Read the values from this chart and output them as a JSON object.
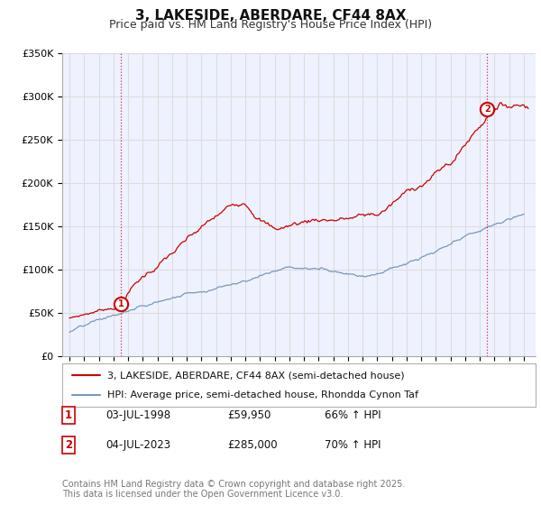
{
  "title_line1": "3, LAKESIDE, ABERDARE, CF44 8AX",
  "title_line2": "Price paid vs. HM Land Registry's House Price Index (HPI)",
  "ylim": [
    0,
    350000
  ],
  "yticks": [
    0,
    50000,
    100000,
    150000,
    200000,
    250000,
    300000,
    350000
  ],
  "ytick_labels": [
    "£0",
    "£50K",
    "£100K",
    "£150K",
    "£200K",
    "£250K",
    "£300K",
    "£350K"
  ],
  "xlim_start": 1994.5,
  "xlim_end": 2026.8,
  "purchase1_year": 1998.5,
  "purchase1_price": 59950,
  "purchase1_label": "1",
  "purchase2_year": 2023.5,
  "purchase2_price": 285000,
  "purchase2_label": "2",
  "red_line_color": "#cc0000",
  "blue_line_color": "#7799bb",
  "grid_color": "#dddddd",
  "background_color": "#eef2ff",
  "legend_label_red": "3, LAKESIDE, ABERDARE, CF44 8AX (semi-detached house)",
  "legend_label_blue": "HPI: Average price, semi-detached house, Rhondda Cynon Taf",
  "annotation1_label": "1",
  "annotation1_date": "03-JUL-1998",
  "annotation1_price": "£59,950",
  "annotation1_hpi": "66% ↑ HPI",
  "annotation2_label": "2",
  "annotation2_date": "04-JUL-2023",
  "annotation2_price": "£285,000",
  "annotation2_hpi": "70% ↑ HPI",
  "footnote": "Contains HM Land Registry data © Crown copyright and database right 2025.\nThis data is licensed under the Open Government Licence v3.0.",
  "title_fontsize": 11,
  "subtitle_fontsize": 9,
  "tick_fontsize": 8,
  "legend_fontsize": 8,
  "annotation_fontsize": 8.5,
  "footnote_fontsize": 7
}
